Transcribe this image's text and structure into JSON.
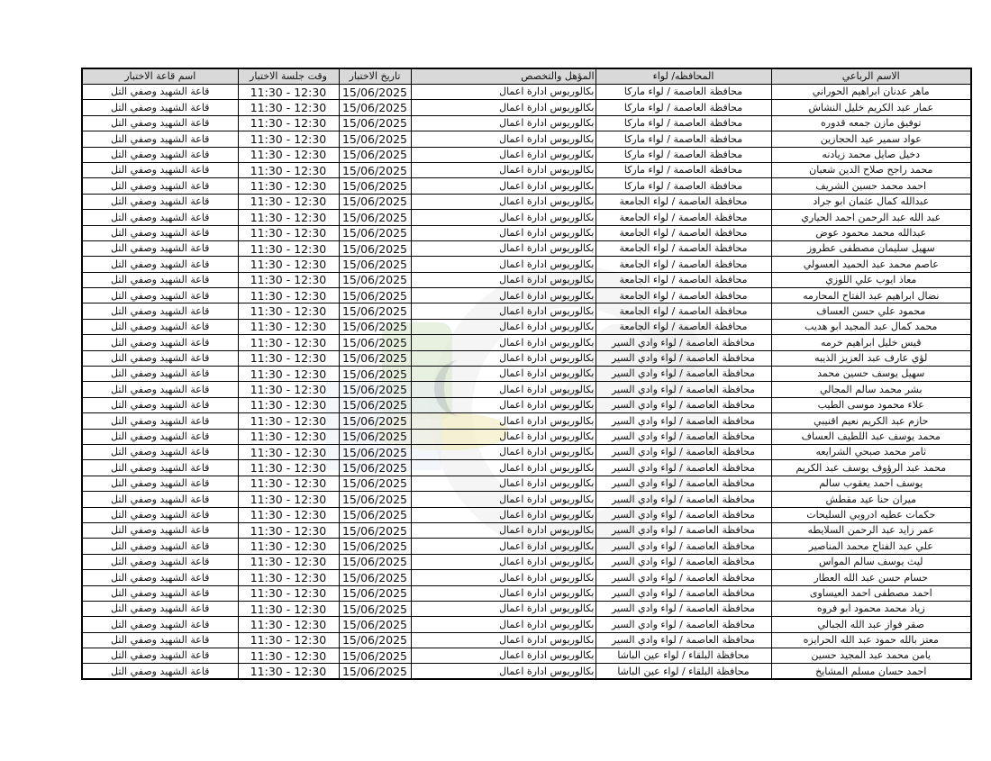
{
  "page": {
    "background": "#ffffff"
  },
  "watermark": {
    "colors": {
      "gray": "#ececec",
      "green": "#dcead0",
      "yellow": "#f3ecc0",
      "blue": "#e7eef5",
      "clock_gray": "#9aa0a6"
    }
  },
  "table": {
    "header_bg": "#d9d9d9",
    "border_color": "#000000",
    "headers": [
      "الاسم الرباعي",
      "المحافظه/ لواء",
      "المؤهل والتخصص",
      "تاريخ الاختبار",
      "وقت جلسة الاختبار",
      "اسم قاعة الاختبار"
    ],
    "rows": [
      {
        "name": "ماهر عدنان ابراهيم الحوراني",
        "governorate": "محافظة العاصمة / لواء ماركا",
        "qualification": "بكالوريوس ادارة اعمال",
        "date": "15/06/2025",
        "time": "11:30 - 12:30",
        "hall": "قاعة الشهيد وصفي التل"
      },
      {
        "name": "عمار عبد الكريم خليل النشاش",
        "governorate": "محافظة العاصمة / لواء ماركا",
        "qualification": "بكالوريوس ادارة اعمال",
        "date": "15/06/2025",
        "time": "11:30 - 12:30",
        "hall": "قاعة الشهيد وصفي التل"
      },
      {
        "name": "توفيق مازن جمعه قدوره",
        "governorate": "محافظة العاصمة / لواء ماركا",
        "qualification": "بكالوريوس ادارة اعمال",
        "date": "15/06/2025",
        "time": "11:30 - 12:30",
        "hall": "قاعة الشهيد وصفي التل"
      },
      {
        "name": "عواد سمير عيد الحجازين",
        "governorate": "محافظة العاصمة / لواء ماركا",
        "qualification": "بكالوريوس ادارة اعمال",
        "date": "15/06/2025",
        "time": "11:30 - 12:30",
        "hall": "قاعة الشهيد وصفي التل"
      },
      {
        "name": "دخيل صايل محمد زيادنه",
        "governorate": "محافظة العاصمة / لواء ماركا",
        "qualification": "بكالوريوس ادارة اعمال",
        "date": "15/06/2025",
        "time": "11:30 - 12:30",
        "hall": "قاعة الشهيد وصفي التل"
      },
      {
        "name": "محمد راجح صلاح الدين شعبان",
        "governorate": "محافظة العاصمة / لواء ماركا",
        "qualification": "بكالوريوس ادارة اعمال",
        "date": "15/06/2025",
        "time": "11:30 - 12:30",
        "hall": "قاعة الشهيد وصفي التل"
      },
      {
        "name": "احمد محمد حسين الشريف",
        "governorate": "محافظة العاصمة / لواء ماركا",
        "qualification": "بكالوريوس ادارة اعمال",
        "date": "15/06/2025",
        "time": "11:30 - 12:30",
        "hall": "قاعة الشهيد وصفي التل"
      },
      {
        "name": "عبدالله كمال عثمان ابو جراد",
        "governorate": "محافظة العاصمة / لواء الجامعة",
        "qualification": "بكالوريوس ادارة اعمال",
        "date": "15/06/2025",
        "time": "11:30 - 12:30",
        "hall": "قاعة الشهيد وصفي التل"
      },
      {
        "name": "عبد الله عبد الرحمن احمد الحياري",
        "governorate": "محافظة العاصمة / لواء الجامعة",
        "qualification": "بكالوريوس ادارة اعمال",
        "date": "15/06/2025",
        "time": "11:30 - 12:30",
        "hall": "قاعة الشهيد وصفي التل"
      },
      {
        "name": "عبدالله محمد محمود عوض",
        "governorate": "محافظة العاصمة / لواء الجامعة",
        "qualification": "بكالوريوس ادارة اعمال",
        "date": "15/06/2025",
        "time": "11:30 - 12:30",
        "hall": "قاعة الشهيد وصفي التل"
      },
      {
        "name": "سهيل سليمان مصطفى عطروز",
        "governorate": "محافظة العاصمة / لواء الجامعة",
        "qualification": "بكالوريوس ادارة اعمال",
        "date": "15/06/2025",
        "time": "11:30 - 12:30",
        "hall": "قاعة الشهيد وصفي التل"
      },
      {
        "name": "عاصم محمد عبد الحميد العسولي",
        "governorate": "محافظة العاصمة / لواء الجامعة",
        "qualification": "بكالوريوس ادارة اعمال",
        "date": "15/06/2025",
        "time": "11:30 - 12:30",
        "hall": "قاعة الشهيد وصفي التل"
      },
      {
        "name": "معاذ ايوب علي اللوزي",
        "governorate": "محافظة العاصمة / لواء الجامعة",
        "qualification": "بكالوريوس ادارة اعمال",
        "date": "15/06/2025",
        "time": "11:30 - 12:30",
        "hall": "قاعة الشهيد وصفي التل"
      },
      {
        "name": "نضال ابراهيم عبد الفتاح المحارمه",
        "governorate": "محافظة العاصمة / لواء الجامعة",
        "qualification": "بكالوريوس ادارة اعمال",
        "date": "15/06/2025",
        "time": "11:30 - 12:30",
        "hall": "قاعة الشهيد وصفي التل"
      },
      {
        "name": "محمود علي حسن العساف",
        "governorate": "محافظة العاصمة / لواء الجامعة",
        "qualification": "بكالوريوس ادارة اعمال",
        "date": "15/06/2025",
        "time": "11:30 - 12:30",
        "hall": "قاعة الشهيد وصفي التل"
      },
      {
        "name": "محمد كمال عبد المجيد ابو هديب",
        "governorate": "محافظة العاصمة / لواء الجامعة",
        "qualification": "بكالوريوس ادارة اعمال",
        "date": "15/06/2025",
        "time": "11:30 - 12:30",
        "hall": "قاعة الشهيد وصفي التل"
      },
      {
        "name": "قيس خليل ابراهيم خرمه",
        "governorate": "محافظة العاصمة / لواء وادي السير",
        "qualification": "بكالوريوس ادارة اعمال",
        "date": "15/06/2025",
        "time": "11:30 - 12:30",
        "hall": "قاعة الشهيد وصفي التل"
      },
      {
        "name": "لؤي عارف عبد العزيز الذيبه",
        "governorate": "محافظة العاصمة / لواء وادي السير",
        "qualification": "بكالوريوس ادارة اعمال",
        "date": "15/06/2025",
        "time": "11:30 - 12:30",
        "hall": "قاعة الشهيد وصفي التل"
      },
      {
        "name": "سهيل يوسف حسين محمد",
        "governorate": "محافظة العاصمة / لواء وادي السير",
        "qualification": "بكالوريوس ادارة اعمال",
        "date": "15/06/2025",
        "time": "11:30 - 12:30",
        "hall": "قاعة الشهيد وصفي التل"
      },
      {
        "name": "بشر محمد سالم المجالي",
        "governorate": "محافظة العاصمة / لواء وادي السير",
        "qualification": "بكالوريوس ادارة اعمال",
        "date": "15/06/2025",
        "time": "11:30 - 12:30",
        "hall": "قاعة الشهيد وصفي التل"
      },
      {
        "name": "علاء محمود موسى الطيب",
        "governorate": "محافظة العاصمة / لواء وادي السير",
        "qualification": "بكالوريوس ادارة اعمال",
        "date": "15/06/2025",
        "time": "11:30 - 12:30",
        "hall": "قاعة الشهيد وصفي التل"
      },
      {
        "name": "حازم عبد الكريم نعيم اقنيبي",
        "governorate": "محافظة العاصمة / لواء وادي السير",
        "qualification": "بكالوريوس ادارة اعمال",
        "date": "15/06/2025",
        "time": "11:30 - 12:30",
        "hall": "قاعة الشهيد وصفي التل"
      },
      {
        "name": "محمد يوسف عبد اللطيف العساف",
        "governorate": "محافظة العاصمة / لواء وادي السير",
        "qualification": "بكالوريوس ادارة اعمال",
        "date": "15/06/2025",
        "time": "11:30 - 12:30",
        "hall": "قاعة الشهيد وصفي التل"
      },
      {
        "name": "ثامر محمد صبحي الشرايعه",
        "governorate": "محافظة العاصمة / لواء وادي السير",
        "qualification": "بكالوريوس ادارة اعمال",
        "date": "15/06/2025",
        "time": "11:30 - 12:30",
        "hall": "قاعة الشهيد وصفي التل"
      },
      {
        "name": "محمد عبد الرؤوف يوسف عبد الكريم",
        "governorate": "محافظة العاصمة / لواء وادي السير",
        "qualification": "بكالوريوس ادارة اعمال",
        "date": "15/06/2025",
        "time": "11:30 - 12:30",
        "hall": "قاعة الشهيد وصفي التل"
      },
      {
        "name": "يوسف احمد يعقوب سالم",
        "governorate": "محافظة العاصمة / لواء وادي السير",
        "qualification": "بكالوريوس ادارة اعمال",
        "date": "15/06/2025",
        "time": "11:30 - 12:30",
        "hall": "قاعة الشهيد وصفي التل"
      },
      {
        "name": "ميران حنا عيد مقطش",
        "governorate": "محافظة العاصمة / لواء وادي السير",
        "qualification": "بكالوريوس ادارة اعمال",
        "date": "15/06/2025",
        "time": "11:30 - 12:30",
        "hall": "قاعة الشهيد وصفي التل"
      },
      {
        "name": "حكمات عطيه ادروبي السليحات",
        "governorate": "محافظة العاصمة / لواء وادي السير",
        "qualification": "بكالوريوس ادارة اعمال",
        "date": "15/06/2025",
        "time": "11:30 - 12:30",
        "hall": "قاعة الشهيد وصفي التل"
      },
      {
        "name": "عمر زايد عبد الرحمن السلايطه",
        "governorate": "محافظة العاصمة / لواء وادي السير",
        "qualification": "بكالوريوس ادارة اعمال",
        "date": "15/06/2025",
        "time": "11:30 - 12:30",
        "hall": "قاعة الشهيد وصفي التل"
      },
      {
        "name": "علي عبد الفتاح محمد المناصير",
        "governorate": "محافظة العاصمة / لواء وادي السير",
        "qualification": "بكالوريوس ادارة اعمال",
        "date": "15/06/2025",
        "time": "11:30 - 12:30",
        "hall": "قاعة الشهيد وصفي التل"
      },
      {
        "name": "ليث يوسف سالم المواس",
        "governorate": "محافظة العاصمة / لواء وادي السير",
        "qualification": "بكالوريوس ادارة اعمال",
        "date": "15/06/2025",
        "time": "11:30 - 12:30",
        "hall": "قاعة الشهيد وصفي التل"
      },
      {
        "name": "حسام حسن عبد الله العطار",
        "governorate": "محافظة العاصمة / لواء وادي السير",
        "qualification": "بكالوريوس ادارة اعمال",
        "date": "15/06/2025",
        "time": "11:30 - 12:30",
        "hall": "قاعة الشهيد وصفي التل"
      },
      {
        "name": "احمد مصطفى احمد العيساوى",
        "governorate": "محافظة العاصمة / لواء وادي السير",
        "qualification": "بكالوريوس ادارة اعمال",
        "date": "15/06/2025",
        "time": "11:30 - 12:30",
        "hall": "قاعة الشهيد وصفي التل"
      },
      {
        "name": "زياد محمد محمود ابو فروه",
        "governorate": "محافظة العاصمة / لواء وادي السير",
        "qualification": "بكالوريوس ادارة اعمال",
        "date": "15/06/2025",
        "time": "11:30 - 12:30",
        "hall": "قاعة الشهيد وصفي التل"
      },
      {
        "name": "صقر فواز عبد الله الجبالي",
        "governorate": "محافظة العاصمة / لواء وادي السير",
        "qualification": "بكالوريوس ادارة اعمال",
        "date": "15/06/2025",
        "time": "11:30 - 12:30",
        "hall": "قاعة الشهيد وصفي التل"
      },
      {
        "name": "معتز بالله حمود عبد الله الحرايزه",
        "governorate": "محافظة العاصمة / لواء وادي السير",
        "qualification": "بكالوريوس ادارة اعمال",
        "date": "15/06/2025",
        "time": "11:30 - 12:30",
        "hall": "قاعة الشهيد وصفي التل"
      },
      {
        "name": "يامن محمد عبد المجيد حسين",
        "governorate": "محافظة البلقاء / لواء عين الباشا",
        "qualification": "بكالوريوس ادارة اعمال",
        "date": "15/06/2025",
        "time": "11:30 - 12:30",
        "hall": "قاعة الشهيد وصفي التل"
      },
      {
        "name": "احمد حسان مسلم المشايخ",
        "governorate": "محافظة البلقاء / لواء عين الباشا",
        "qualification": "بكالوريوس ادارة اعمال",
        "date": "15/06/2025",
        "time": "11:30 - 12:30",
        "hall": "قاعة الشهيد وصفي التل"
      }
    ]
  }
}
